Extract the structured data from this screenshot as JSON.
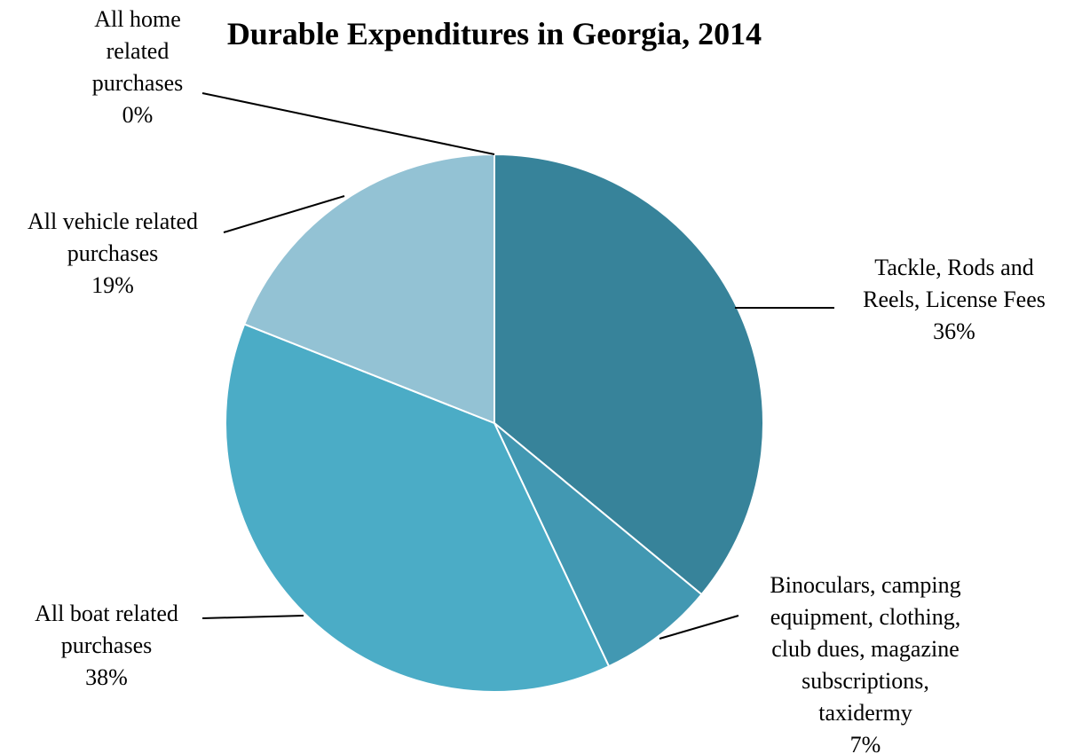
{
  "chart_data": {
    "type": "pie",
    "title": "Durable Expenditures in Georgia, 2014",
    "slices": [
      {
        "label": [
          "Tackle, Rods and",
          "Reels, License Fees"
        ],
        "pct_label": "36%",
        "value": 36,
        "color": "#37839a"
      },
      {
        "label": [
          "Binoculars, camping",
          "equipment, clothing,",
          "club dues, magazine",
          "subscriptions,",
          "taxidermy"
        ],
        "pct_label": "7%",
        "value": 7,
        "color": "#4298b2"
      },
      {
        "label": [
          "All boat related",
          "purchases"
        ],
        "pct_label": "38%",
        "value": 38,
        "color": "#4bacc6"
      },
      {
        "label": [
          "All vehicle related",
          "purchases"
        ],
        "pct_label": "19%",
        "value": 19,
        "color": "#93c2d4"
      },
      {
        "label": [
          "All home",
          "related",
          "purchases"
        ],
        "pct_label": "0%",
        "value": 0,
        "color": "#a9cfdd"
      }
    ],
    "legend": "none",
    "data_labels": "outside with leader lines"
  }
}
